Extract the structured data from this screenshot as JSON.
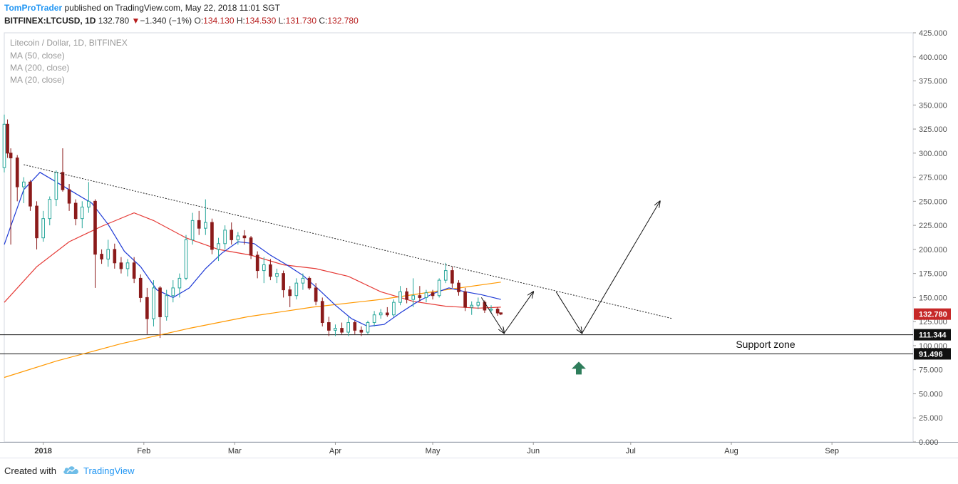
{
  "header": {
    "author": "TomProTrader",
    "published": "published on TradingView.com, May 22, 2018 11:01 SGT",
    "symbol": "BITFINEX:LTCUSD, 1D",
    "last": "132.780",
    "change": "−1.340 (−1%)",
    "open_label": "O:",
    "open": "134.130",
    "high_label": "H:",
    "high": "134.530",
    "low_label": "L:",
    "low": "131.730",
    "close_label": "C:",
    "close": "132.780"
  },
  "footer": {
    "created_label": "Created with",
    "brand": "TradingView"
  },
  "colors": {
    "up": "#26a69a",
    "down": "#8b1a1a",
    "ma50": "#e53935",
    "ma200": "#ff9800",
    "ma20": "#1e3ad6",
    "arrow_up": "#2e7d5b",
    "price_badge": "#c62828"
  },
  "chart_data": {
    "type": "candlestick",
    "title": "Litecoin / Dollar, 1D, BITFINEX",
    "legend": [
      "MA (50, close)",
      "MA (200, close)",
      "MA (20, close)"
    ],
    "legend_placement": "top-left",
    "ylim": [
      0,
      425
    ],
    "y_ticks": [
      "0.000",
      "25.000",
      "50.000",
      "75.000",
      "100.000",
      "125.000",
      "150.000",
      "175.000",
      "200.000",
      "225.000",
      "250.000",
      "275.000",
      "300.000",
      "325.000",
      "350.000",
      "375.000",
      "400.000",
      "425.000"
    ],
    "x_ticks": [
      {
        "label": "2018",
        "date": "2018-01-01"
      },
      {
        "label": "Feb",
        "date": "2018-02-01"
      },
      {
        "label": "Mar",
        "date": "2018-03-01"
      },
      {
        "label": "Apr",
        "date": "2018-04-01"
      },
      {
        "label": "May",
        "date": "2018-05-01"
      },
      {
        "label": "Jun",
        "date": "2018-06-01"
      },
      {
        "label": "Jul",
        "date": "2018-07-01"
      },
      {
        "label": "Aug",
        "date": "2018-08-01"
      },
      {
        "label": "Sep",
        "date": "2018-09-01"
      }
    ],
    "xlim": [
      "2017-12-20",
      "2018-09-26"
    ],
    "support_zone": {
      "label": "Support zone",
      "upper": 111.344,
      "lower": 91.496,
      "upper_label": "111.344",
      "lower_label": "91.496"
    },
    "last_price": {
      "value": 132.78,
      "label": "132.780"
    },
    "trendline": [
      {
        "date": "2017-12-26",
        "value": 288
      },
      {
        "date": "2018-07-14",
        "value": 128
      }
    ],
    "projection_path": [
      {
        "date": "2018-05-16",
        "value": 150
      },
      {
        "date": "2018-05-23",
        "value": 113
      },
      {
        "date": "2018-06-01",
        "value": 156
      },
      {
        "date": "2018-06-08",
        "value": 156
      },
      {
        "date": "2018-06-16",
        "value": 113
      },
      {
        "date": "2018-07-10",
        "value": 250
      }
    ],
    "buy_marker": {
      "date": "2018-06-15",
      "value": 76
    },
    "candles_sampled": [
      {
        "date": "2017-12-20",
        "open": 285,
        "high": 340,
        "low": 280,
        "close": 330
      },
      {
        "date": "2017-12-21",
        "open": 330,
        "high": 335,
        "low": 295,
        "close": 300
      },
      {
        "date": "2017-12-22",
        "open": 300,
        "high": 305,
        "low": 205,
        "close": 295
      },
      {
        "date": "2017-12-24",
        "open": 295,
        "high": 298,
        "low": 250,
        "close": 265
      },
      {
        "date": "2017-12-26",
        "open": 265,
        "high": 275,
        "low": 248,
        "close": 270
      },
      {
        "date": "2017-12-28",
        "open": 270,
        "high": 272,
        "low": 240,
        "close": 245
      },
      {
        "date": "2017-12-30",
        "open": 245,
        "high": 250,
        "low": 200,
        "close": 212
      },
      {
        "date": "2018-01-01",
        "open": 212,
        "high": 240,
        "low": 208,
        "close": 232
      },
      {
        "date": "2018-01-03",
        "open": 232,
        "high": 255,
        "low": 225,
        "close": 252
      },
      {
        "date": "2018-01-05",
        "open": 252,
        "high": 282,
        "low": 245,
        "close": 280
      },
      {
        "date": "2018-01-07",
        "open": 280,
        "high": 305,
        "low": 260,
        "close": 262
      },
      {
        "date": "2018-01-09",
        "open": 262,
        "high": 268,
        "low": 240,
        "close": 248
      },
      {
        "date": "2018-01-11",
        "open": 248,
        "high": 252,
        "low": 225,
        "close": 232
      },
      {
        "date": "2018-01-13",
        "open": 232,
        "high": 250,
        "low": 222,
        "close": 244
      },
      {
        "date": "2018-01-15",
        "open": 244,
        "high": 270,
        "low": 238,
        "close": 250
      },
      {
        "date": "2018-01-17",
        "open": 250,
        "high": 252,
        "low": 160,
        "close": 195
      },
      {
        "date": "2018-01-19",
        "open": 195,
        "high": 200,
        "low": 185,
        "close": 190
      },
      {
        "date": "2018-01-21",
        "open": 190,
        "high": 210,
        "low": 182,
        "close": 200
      },
      {
        "date": "2018-01-23",
        "open": 200,
        "high": 206,
        "low": 180,
        "close": 186
      },
      {
        "date": "2018-01-25",
        "open": 186,
        "high": 192,
        "low": 175,
        "close": 180
      },
      {
        "date": "2018-01-27",
        "open": 180,
        "high": 190,
        "low": 172,
        "close": 186
      },
      {
        "date": "2018-01-29",
        "open": 186,
        "high": 192,
        "low": 165,
        "close": 170
      },
      {
        "date": "2018-01-31",
        "open": 170,
        "high": 174,
        "low": 145,
        "close": 150
      },
      {
        "date": "2018-02-02",
        "open": 150,
        "high": 160,
        "low": 112,
        "close": 128
      },
      {
        "date": "2018-02-04",
        "open": 128,
        "high": 168,
        "low": 120,
        "close": 160
      },
      {
        "date": "2018-02-06",
        "open": 160,
        "high": 162,
        "low": 108,
        "close": 130
      },
      {
        "date": "2018-02-08",
        "open": 130,
        "high": 158,
        "low": 126,
        "close": 152
      },
      {
        "date": "2018-02-10",
        "open": 152,
        "high": 168,
        "low": 145,
        "close": 160
      },
      {
        "date": "2018-02-12",
        "open": 160,
        "high": 175,
        "low": 150,
        "close": 170
      },
      {
        "date": "2018-02-14",
        "open": 170,
        "high": 215,
        "low": 168,
        "close": 210
      },
      {
        "date": "2018-02-16",
        "open": 210,
        "high": 238,
        "low": 205,
        "close": 230
      },
      {
        "date": "2018-02-18",
        "open": 230,
        "high": 240,
        "low": 215,
        "close": 222
      },
      {
        "date": "2018-02-20",
        "open": 222,
        "high": 252,
        "low": 215,
        "close": 228
      },
      {
        "date": "2018-02-22",
        "open": 228,
        "high": 232,
        "low": 195,
        "close": 200
      },
      {
        "date": "2018-02-24",
        "open": 200,
        "high": 212,
        "low": 188,
        "close": 206
      },
      {
        "date": "2018-02-26",
        "open": 206,
        "high": 225,
        "low": 200,
        "close": 220
      },
      {
        "date": "2018-02-28",
        "open": 220,
        "high": 228,
        "low": 205,
        "close": 210
      },
      {
        "date": "2018-03-02",
        "open": 210,
        "high": 218,
        "low": 205,
        "close": 214
      },
      {
        "date": "2018-03-04",
        "open": 214,
        "high": 220,
        "low": 205,
        "close": 212
      },
      {
        "date": "2018-03-06",
        "open": 212,
        "high": 214,
        "low": 190,
        "close": 194
      },
      {
        "date": "2018-03-08",
        "open": 194,
        "high": 198,
        "low": 170,
        "close": 178
      },
      {
        "date": "2018-03-10",
        "open": 178,
        "high": 192,
        "low": 165,
        "close": 184
      },
      {
        "date": "2018-03-12",
        "open": 184,
        "high": 190,
        "low": 168,
        "close": 172
      },
      {
        "date": "2018-03-14",
        "open": 172,
        "high": 180,
        "low": 165,
        "close": 175
      },
      {
        "date": "2018-03-16",
        "open": 175,
        "high": 178,
        "low": 150,
        "close": 158
      },
      {
        "date": "2018-03-18",
        "open": 158,
        "high": 162,
        "low": 140,
        "close": 152
      },
      {
        "date": "2018-03-20",
        "open": 152,
        "high": 170,
        "low": 148,
        "close": 165
      },
      {
        "date": "2018-03-22",
        "open": 165,
        "high": 175,
        "low": 158,
        "close": 170
      },
      {
        "date": "2018-03-24",
        "open": 170,
        "high": 172,
        "low": 158,
        "close": 160
      },
      {
        "date": "2018-03-26",
        "open": 160,
        "high": 165,
        "low": 142,
        "close": 146
      },
      {
        "date": "2018-03-28",
        "open": 146,
        "high": 150,
        "low": 120,
        "close": 124
      },
      {
        "date": "2018-03-30",
        "open": 124,
        "high": 130,
        "low": 110,
        "close": 116
      },
      {
        "date": "2018-04-01",
        "open": 116,
        "high": 122,
        "low": 110,
        "close": 118
      },
      {
        "date": "2018-04-03",
        "open": 118,
        "high": 124,
        "low": 112,
        "close": 114
      },
      {
        "date": "2018-04-05",
        "open": 114,
        "high": 130,
        "low": 110,
        "close": 124
      },
      {
        "date": "2018-04-07",
        "open": 124,
        "high": 126,
        "low": 112,
        "close": 116
      },
      {
        "date": "2018-04-09",
        "open": 116,
        "high": 120,
        "low": 110,
        "close": 114
      },
      {
        "date": "2018-04-11",
        "open": 114,
        "high": 126,
        "low": 112,
        "close": 124
      },
      {
        "date": "2018-04-13",
        "open": 124,
        "high": 136,
        "low": 120,
        "close": 132
      },
      {
        "date": "2018-04-15",
        "open": 132,
        "high": 138,
        "low": 128,
        "close": 134
      },
      {
        "date": "2018-04-17",
        "open": 134,
        "high": 140,
        "low": 130,
        "close": 132
      },
      {
        "date": "2018-04-19",
        "open": 132,
        "high": 148,
        "low": 130,
        "close": 145
      },
      {
        "date": "2018-04-21",
        "open": 145,
        "high": 162,
        "low": 142,
        "close": 156
      },
      {
        "date": "2018-04-23",
        "open": 156,
        "high": 160,
        "low": 144,
        "close": 148
      },
      {
        "date": "2018-04-25",
        "open": 148,
        "high": 170,
        "low": 140,
        "close": 152
      },
      {
        "date": "2018-04-27",
        "open": 152,
        "high": 162,
        "low": 146,
        "close": 150
      },
      {
        "date": "2018-04-29",
        "open": 150,
        "high": 158,
        "low": 145,
        "close": 155
      },
      {
        "date": "2018-05-01",
        "open": 155,
        "high": 158,
        "low": 148,
        "close": 152
      },
      {
        "date": "2018-05-03",
        "open": 152,
        "high": 170,
        "low": 150,
        "close": 168
      },
      {
        "date": "2018-05-05",
        "open": 168,
        "high": 186,
        "low": 165,
        "close": 178
      },
      {
        "date": "2018-05-07",
        "open": 178,
        "high": 182,
        "low": 160,
        "close": 165
      },
      {
        "date": "2018-05-09",
        "open": 165,
        "high": 168,
        "low": 152,
        "close": 156
      },
      {
        "date": "2018-05-11",
        "open": 156,
        "high": 160,
        "low": 136,
        "close": 140
      },
      {
        "date": "2018-05-13",
        "open": 140,
        "high": 146,
        "low": 132,
        "close": 142
      },
      {
        "date": "2018-05-15",
        "open": 142,
        "high": 150,
        "low": 138,
        "close": 145
      },
      {
        "date": "2018-05-17",
        "open": 145,
        "high": 147,
        "low": 134,
        "close": 137
      },
      {
        "date": "2018-05-19",
        "open": 137,
        "high": 142,
        "low": 134,
        "close": 138
      },
      {
        "date": "2018-05-21",
        "open": 138,
        "high": 140,
        "low": 131,
        "close": 134
      },
      {
        "date": "2018-05-22",
        "open": 134.13,
        "high": 134.53,
        "low": 131.73,
        "close": 132.78
      }
    ],
    "ma20": [
      [
        "2017-12-20",
        205
      ],
      [
        "2017-12-26",
        262
      ],
      [
        "2017-12-31",
        280
      ],
      [
        "2018-01-05",
        270
      ],
      [
        "2018-01-10",
        260
      ],
      [
        "2018-01-16",
        248
      ],
      [
        "2018-01-21",
        226
      ],
      [
        "2018-01-26",
        198
      ],
      [
        "2018-01-31",
        182
      ],
      [
        "2018-02-05",
        158
      ],
      [
        "2018-02-10",
        150
      ],
      [
        "2018-02-15",
        160
      ],
      [
        "2018-02-20",
        180
      ],
      [
        "2018-02-25",
        196
      ],
      [
        "2018-03-02",
        208
      ],
      [
        "2018-03-07",
        206
      ],
      [
        "2018-03-12",
        194
      ],
      [
        "2018-03-17",
        184
      ],
      [
        "2018-03-22",
        173
      ],
      [
        "2018-03-27",
        158
      ],
      [
        "2018-04-01",
        142
      ],
      [
        "2018-04-06",
        128
      ],
      [
        "2018-04-11",
        120
      ],
      [
        "2018-04-16",
        122
      ],
      [
        "2018-04-21",
        134
      ],
      [
        "2018-04-26",
        145
      ],
      [
        "2018-05-01",
        154
      ],
      [
        "2018-05-06",
        160
      ],
      [
        "2018-05-11",
        156
      ],
      [
        "2018-05-16",
        153
      ],
      [
        "2018-05-22",
        148
      ]
    ],
    "ma50": [
      [
        "2017-12-20",
        145
      ],
      [
        "2017-12-30",
        182
      ],
      [
        "2018-01-09",
        208
      ],
      [
        "2018-01-19",
        224
      ],
      [
        "2018-01-29",
        238
      ],
      [
        "2018-02-04",
        230
      ],
      [
        "2018-02-14",
        212
      ],
      [
        "2018-02-24",
        200
      ],
      [
        "2018-03-06",
        194
      ],
      [
        "2018-03-16",
        184
      ],
      [
        "2018-03-26",
        180
      ],
      [
        "2018-04-05",
        172
      ],
      [
        "2018-04-15",
        156
      ],
      [
        "2018-04-25",
        146
      ],
      [
        "2018-05-05",
        141
      ],
      [
        "2018-05-15",
        139
      ],
      [
        "2018-05-22",
        140
      ]
    ],
    "ma200": [
      [
        "2017-12-20",
        67
      ],
      [
        "2018-01-05",
        84
      ],
      [
        "2018-01-25",
        102
      ],
      [
        "2018-02-15",
        118
      ],
      [
        "2018-03-05",
        130
      ],
      [
        "2018-03-25",
        140
      ],
      [
        "2018-04-15",
        148
      ],
      [
        "2018-05-05",
        158
      ],
      [
        "2018-05-22",
        166
      ]
    ]
  }
}
